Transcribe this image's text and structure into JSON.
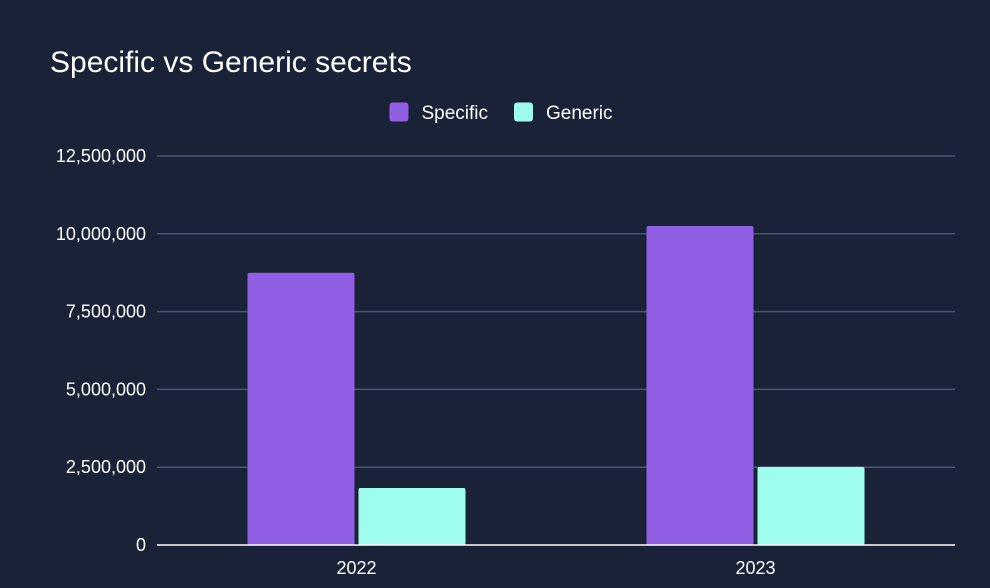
{
  "chart_data": {
    "type": "bar",
    "title": "Specific vs Generic secrets",
    "categories": [
      "2022",
      "2023"
    ],
    "series": [
      {
        "name": "Specific",
        "color": "#915fe3",
        "values": [
          8750000,
          10250000
        ]
      },
      {
        "name": "Generic",
        "color": "#9ffdee",
        "values": [
          1830000,
          2510000
        ]
      }
    ],
    "ylim": [
      0,
      12500000
    ],
    "yticks": [
      0,
      2500000,
      5000000,
      7500000,
      10000000,
      12500000
    ],
    "ytick_labels": [
      "0",
      "2,500,000",
      "5,000,000",
      "7,500,000",
      "10,000,000",
      "12,500,000"
    ],
    "grid": true,
    "legend_position": "top-center",
    "colors": {
      "background": "#1a2238",
      "grid": "#4b5470",
      "text": "#ffffff"
    }
  }
}
